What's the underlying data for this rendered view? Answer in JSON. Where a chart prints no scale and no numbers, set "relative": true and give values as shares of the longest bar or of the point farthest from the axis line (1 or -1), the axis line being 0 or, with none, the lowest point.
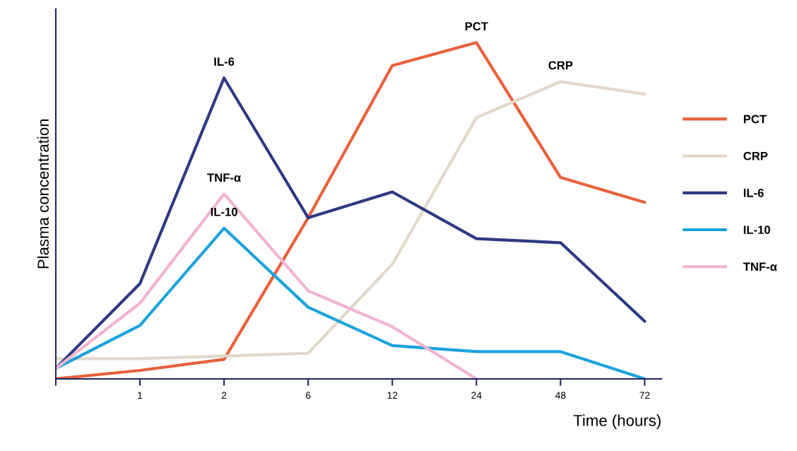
{
  "chart_data": {
    "type": "line",
    "relative": true,
    "xlabel": "Time (hours)",
    "ylabel": "Plasma concentration",
    "categories": [
      null,
      "1",
      "2",
      "6",
      "12",
      "24",
      "48",
      "72"
    ],
    "series": [
      {
        "name": "PCT",
        "color": "#e8613c",
        "values": [
          0,
          0.025,
          0.058,
          0.479,
          0.932,
          1,
          0.599,
          0.525
        ]
      },
      {
        "name": "CRP",
        "color": "#e2d8c9",
        "values": [
          0.06,
          0.06,
          0.068,
          0.076,
          0.341,
          0.777,
          0.884,
          0.847
        ]
      },
      {
        "name": "IL-6",
        "color": "#2e3a82",
        "values": [
          0.031,
          0.283,
          0.895,
          0.479,
          0.556,
          0.417,
          0.405,
          0.171
        ]
      },
      {
        "name": "IL-10",
        "color": "#1ba3dd",
        "values": [
          0.031,
          0.159,
          0.448,
          0.213,
          0.099,
          0.081,
          0.081,
          0
        ]
      },
      {
        "name": "TNF-α",
        "color": "#f2b3d3",
        "values": [
          0.031,
          0.225,
          0.55,
          0.262,
          0.155,
          0,
          null,
          null
        ]
      }
    ],
    "annotations": [
      {
        "text": "IL-6",
        "x": "2",
        "y": 0.895
      },
      {
        "text": "TNF-α",
        "x": "2",
        "y": 0.55
      },
      {
        "text": "IL-10",
        "x": "2",
        "y": 0.448
      },
      {
        "text": "PCT",
        "x": "24",
        "y": 1
      },
      {
        "text": "CRP",
        "x": "48",
        "y": 0.884
      }
    ],
    "legend": "right",
    "grid": false,
    "marker": "none",
    "line_style": "solid"
  }
}
